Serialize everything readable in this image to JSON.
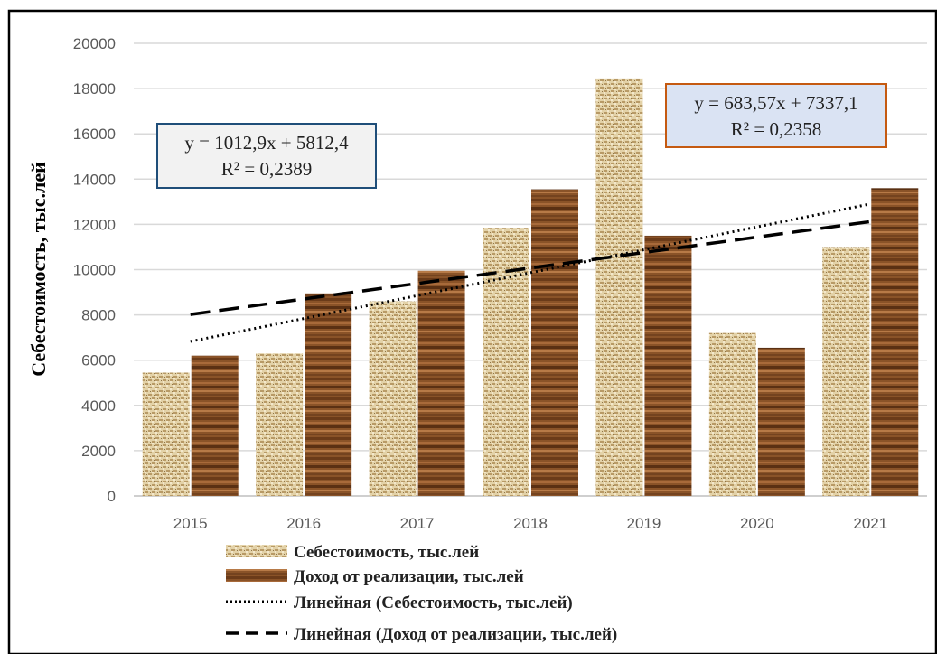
{
  "chart_data": {
    "type": "bar",
    "ylabel": "Себестоимость, тыс.лей",
    "ylim": [
      0,
      20000
    ],
    "yticks": [
      0,
      2000,
      4000,
      6000,
      8000,
      10000,
      12000,
      14000,
      16000,
      18000,
      20000
    ],
    "categories": [
      "2015",
      "2016",
      "2017",
      "2018",
      "2019",
      "2020",
      "2021"
    ],
    "grid": true,
    "legend_position": "bottom",
    "series": [
      {
        "name": "Себестоимость, тыс.лей",
        "values": [
          5450,
          6300,
          8600,
          11850,
          18450,
          7200,
          11000
        ],
        "color": "#d9c49a",
        "pattern": "burlap"
      },
      {
        "name": "Доход от реализации, тыс.лей",
        "values": [
          6200,
          8950,
          9950,
          13550,
          11500,
          6550,
          13600
        ],
        "color": "#8a5328",
        "pattern": "wood"
      }
    ],
    "trendlines": [
      {
        "name": "Линейная (Себестоимость, тыс.лей)",
        "slope": 1012.9,
        "intercept": 5812.4,
        "style": "dotted"
      },
      {
        "name": "Линейная (Доход от реализации, тыс.лей)",
        "slope": 683.57,
        "intercept": 7337.1,
        "style": "dashed"
      }
    ],
    "annotations": [
      {
        "line1": "y = 1012,9x + 5812,4",
        "line2": "R² = 0,2389",
        "border": "#1f4e79",
        "fill": "#f2f2f2"
      },
      {
        "line1": "y = 683,57x + 7337,1",
        "line2": "R² = 0,2358",
        "border": "#c55a11",
        "fill": "#dae3f3"
      }
    ]
  }
}
